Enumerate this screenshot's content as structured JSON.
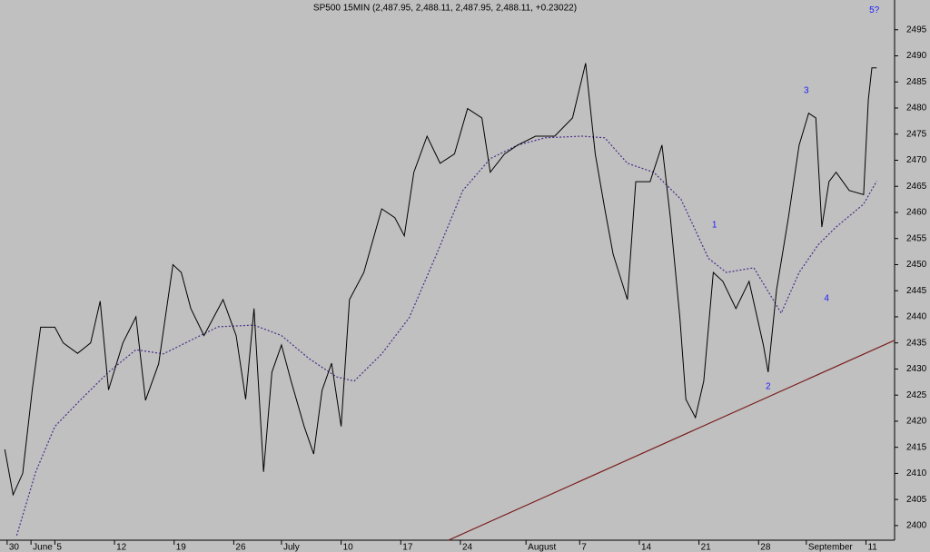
{
  "chart_data": {
    "type": "line",
    "title": "SP500 15MIN (2,487.95, 2,488.11, 2,487.95, 2,488.11, +0.23022)",
    "xlim": [
      -0.6,
      74.4
    ],
    "ylim": [
      2397.2,
      2500.7
    ],
    "xticks": [
      {
        "value": 0,
        "label": "30"
      },
      {
        "value": 2,
        "label": "June"
      },
      {
        "value": 4,
        "label": "5"
      },
      {
        "value": 9,
        "label": "12"
      },
      {
        "value": 14,
        "label": "19"
      },
      {
        "value": 19,
        "label": "26"
      },
      {
        "value": 23,
        "label": "July"
      },
      {
        "value": 28,
        "label": "10"
      },
      {
        "value": 33,
        "label": "17"
      },
      {
        "value": 38,
        "label": "24"
      },
      {
        "value": 43.5,
        "label": "August"
      },
      {
        "value": 48,
        "label": "7"
      },
      {
        "value": 53,
        "label": "14"
      },
      {
        "value": 58,
        "label": "21"
      },
      {
        "value": 63,
        "label": "28"
      },
      {
        "value": 67,
        "label": "September"
      },
      {
        "value": 72,
        "label": "11"
      }
    ],
    "yticks": [
      2400,
      2405,
      2410,
      2415,
      2420,
      2425,
      2430,
      2435,
      2440,
      2445,
      2450,
      2455,
      2460,
      2465,
      2470,
      2475,
      2480,
      2485,
      2490,
      2495
    ],
    "price": {
      "color": "#000000",
      "x": [
        -0.2,
        0.5,
        1.3,
        2.1,
        2.8,
        4.0,
        4.7,
        5.9,
        7.0,
        7.8,
        8.5,
        9.7,
        10.8,
        11.6,
        12.7,
        13.9,
        14.6,
        15.4,
        16.5,
        18.1,
        19.2,
        20.0,
        20.7,
        21.5,
        22.2,
        23.0,
        23.8,
        24.9,
        25.7,
        26.4,
        27.2,
        28.0,
        28.7,
        29.9,
        31.4,
        32.5,
        33.3,
        34.1,
        35.2,
        36.3,
        37.5,
        38.6,
        39.8,
        40.5,
        41.7,
        42.8,
        44.3,
        45.9,
        47.4,
        48.5,
        49.3,
        50.1,
        50.8,
        52.0,
        52.7,
        53.9,
        54.9,
        55.6,
        56.4,
        56.9,
        57.7,
        58.4,
        59.2,
        60.0,
        61.1,
        62.2,
        63.4,
        63.8,
        64.5,
        65.5,
        66.4,
        67.2,
        67.8,
        68.3,
        68.9,
        69.5,
        70.6,
        71.8,
        72.2,
        72.5,
        72.9
      ],
      "values": [
        2414.6,
        2405.9,
        2410,
        2426,
        2438,
        2438,
        2435,
        2433,
        2435,
        2443,
        2426,
        2435,
        2440,
        2424,
        2431,
        2450,
        2448.5,
        2441.6,
        2436.4,
        2443.3,
        2436.4,
        2424.2,
        2441.6,
        2410.3,
        2429.4,
        2434.6,
        2427.7,
        2419,
        2413.7,
        2425.9,
        2431.1,
        2419,
        2443.3,
        2448.5,
        2460.7,
        2459,
        2455.5,
        2467.7,
        2474.6,
        2469.4,
        2471.2,
        2479.9,
        2478.1,
        2467.7,
        2471.2,
        2472.9,
        2474.6,
        2474.6,
        2478.1,
        2488.6,
        2471.2,
        2460.7,
        2452,
        2443.3,
        2465.9,
        2465.9,
        2472.9,
        2459,
        2439.8,
        2424.2,
        2420.7,
        2427.7,
        2448.5,
        2446.8,
        2441.6,
        2446.8,
        2434.6,
        2429.4,
        2445.1,
        2459,
        2472.9,
        2479,
        2478.1,
        2457.2,
        2465.9,
        2467.7,
        2464.2,
        2463.4,
        2481.6,
        2487.7,
        2487.7
      ]
    },
    "moving_average": {
      "color": "#4a2c8a",
      "x": [
        0.8,
        2.4,
        4.0,
        6.2,
        8.5,
        10.8,
        13.1,
        15.4,
        17.7,
        20.7,
        23.0,
        25.3,
        27.6,
        29.1,
        31.4,
        33.7,
        36.0,
        38.2,
        40.5,
        42.8,
        45.1,
        48.2,
        50.1,
        52.0,
        54.2,
        56.5,
        58.8,
        60.3,
        62.6,
        64.9,
        66.4,
        68.0,
        69.5,
        71.8,
        72.9
      ],
      "values": [
        2398.1,
        2410.3,
        2419,
        2424.2,
        2429.4,
        2433.7,
        2432.9,
        2435.5,
        2438.1,
        2438.4,
        2436.4,
        2432,
        2428.5,
        2427.7,
        2432.9,
        2439.8,
        2452,
        2464.2,
        2470.3,
        2472.9,
        2474.3,
        2474.6,
        2474.3,
        2469.4,
        2467.7,
        2462.5,
        2451.2,
        2448.5,
        2449.4,
        2440.7,
        2448.5,
        2453.8,
        2457.2,
        2461.6,
        2466
      ]
    },
    "trendline": {
      "color": "#7a1c1c",
      "x": [
        37.0,
        74.4
      ],
      "values": [
        2397.2,
        2435.5
      ]
    },
    "annotations": [
      {
        "text": "1",
        "x": 59.3,
        "y": 2457.6
      },
      {
        "text": "2",
        "x": 63.8,
        "y": 2426.6
      },
      {
        "text": "3",
        "x": 67.0,
        "y": 2483.3
      },
      {
        "text": "4",
        "x": 68.7,
        "y": 2443.5
      },
      {
        "text": "5?",
        "x": 72.7,
        "y": 2498.7
      }
    ],
    "annotation_color": "#1a1aff"
  }
}
